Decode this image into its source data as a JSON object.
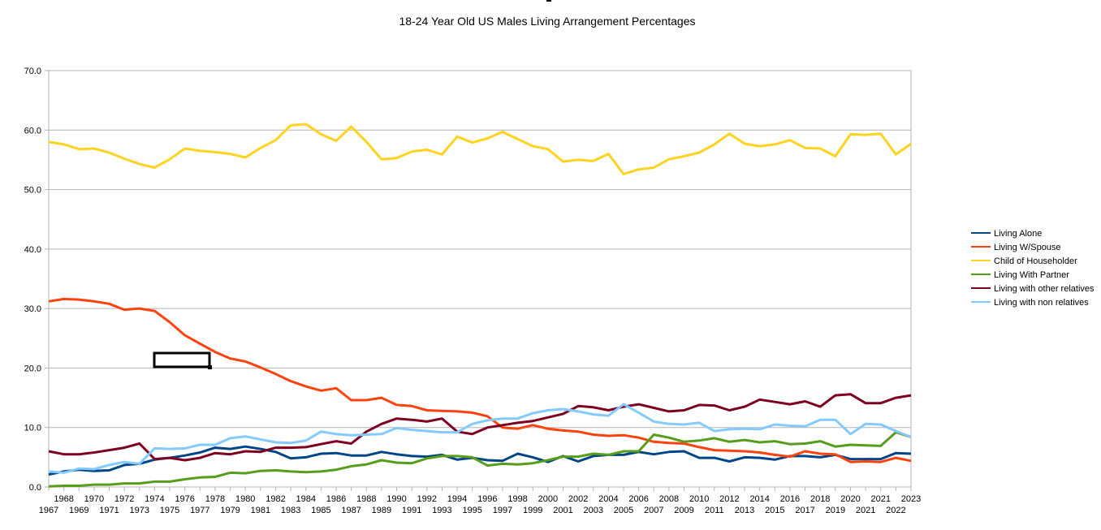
{
  "chart_data": {
    "type": "line",
    "title": "18-24 Year Old US Males Living Arrangement Percentages",
    "xlabel": "",
    "ylabel": "",
    "ylim": [
      0,
      70
    ],
    "yticks": [
      "0.0",
      "10.0",
      "20.0",
      "30.0",
      "40.0",
      "50.0",
      "60.0",
      "70.0"
    ],
    "grid": true,
    "legend_position": "right",
    "categories": [
      "1967",
      "1968",
      "1969",
      "1970",
      "1971",
      "1972",
      "1973",
      "1974",
      "1975",
      "1976",
      "1977",
      "1978",
      "1979",
      "1980",
      "1981",
      "1982",
      "1983",
      "1984",
      "1985",
      "1986",
      "1987",
      "1988",
      "1989",
      "1990",
      "1991",
      "1992",
      "1993",
      "1994",
      "1995",
      "1996",
      "1997",
      "1998",
      "1999",
      "2000",
      "2001",
      "2002",
      "2003",
      "2004",
      "2005",
      "2006",
      "2007",
      "2008",
      "2009",
      "2010",
      "2011",
      "2012",
      "2013",
      "2014",
      "2015",
      "2016",
      "2017",
      "2018",
      "2019",
      "2020",
      "2021",
      "2021",
      "2022",
      "2023"
    ],
    "series": [
      {
        "name": "Living Alone",
        "color": "#004586",
        "values": [
          2.1,
          2.6,
          2.9,
          2.7,
          2.8,
          3.7,
          3.9,
          4.6,
          4.9,
          5.3,
          5.8,
          6.6,
          6.4,
          6.8,
          6.4,
          5.9,
          4.8,
          5.0,
          5.6,
          5.7,
          5.3,
          5.3,
          5.9,
          5.5,
          5.2,
          5.1,
          5.4,
          4.6,
          4.9,
          4.5,
          4.4,
          5.6,
          5.0,
          4.2,
          5.2,
          4.3,
          5.2,
          5.4,
          5.4,
          5.9,
          5.5,
          5.9,
          6.0,
          4.9,
          4.9,
          4.3,
          5.0,
          4.9,
          4.6,
          5.2,
          5.2,
          5.0,
          5.4,
          4.7,
          4.7,
          4.7,
          5.7,
          5.6
        ]
      },
      {
        "name": "Living W/Spouse",
        "color": "#ff420e",
        "values": [
          31.2,
          31.6,
          31.5,
          31.2,
          30.8,
          29.8,
          30.0,
          29.6,
          27.7,
          25.5,
          24.1,
          22.7,
          21.6,
          21.1,
          20.1,
          19.0,
          17.8,
          16.9,
          16.2,
          16.6,
          14.6,
          14.6,
          15.0,
          13.8,
          13.6,
          12.9,
          12.8,
          12.7,
          12.5,
          11.9,
          10.0,
          9.8,
          10.4,
          9.8,
          9.5,
          9.3,
          8.8,
          8.6,
          8.7,
          8.3,
          7.6,
          7.4,
          7.3,
          6.7,
          6.2,
          6.1,
          6.0,
          5.8,
          5.4,
          5.1,
          6.0,
          5.6,
          5.5,
          4.2,
          4.3,
          4.2,
          4.9,
          4.4
        ]
      },
      {
        "name": "Child of Householder",
        "color": "#ffd320",
        "values": [
          58.0,
          57.6,
          56.8,
          56.9,
          56.2,
          55.2,
          54.3,
          53.7,
          55.1,
          56.9,
          56.5,
          56.3,
          56.0,
          55.4,
          57.0,
          58.3,
          60.8,
          61.0,
          59.3,
          58.2,
          60.6,
          58.0,
          55.1,
          55.3,
          56.4,
          56.7,
          55.9,
          58.9,
          57.9,
          58.6,
          59.7,
          58.5,
          57.3,
          56.8,
          54.7,
          55.0,
          54.8,
          56.0,
          52.6,
          53.4,
          53.7,
          55.1,
          55.6,
          56.2,
          57.6,
          59.4,
          57.7,
          57.3,
          57.6,
          58.3,
          57.0,
          56.9,
          55.6,
          59.3,
          59.2,
          59.4,
          55.9,
          57.7
        ]
      },
      {
        "name": "Living With Partner",
        "color": "#579d1c",
        "values": [
          0.1,
          0.2,
          0.2,
          0.4,
          0.4,
          0.6,
          0.6,
          0.9,
          0.9,
          1.3,
          1.6,
          1.7,
          2.4,
          2.3,
          2.7,
          2.8,
          2.6,
          2.5,
          2.6,
          2.9,
          3.5,
          3.8,
          4.5,
          4.1,
          4.0,
          4.8,
          5.2,
          5.2,
          5.0,
          3.6,
          3.9,
          3.8,
          4.0,
          4.5,
          5.1,
          5.1,
          5.6,
          5.4,
          6.0,
          6.0,
          8.8,
          8.3,
          7.6,
          7.8,
          8.2,
          7.6,
          7.9,
          7.5,
          7.7,
          7.2,
          7.3,
          7.7,
          6.8,
          7.1,
          7.0,
          6.9,
          9.2,
          8.4
        ]
      },
      {
        "name": "Living with other relatives",
        "color": "#7e0021",
        "values": [
          6.0,
          5.5,
          5.5,
          5.8,
          6.2,
          6.6,
          7.3,
          4.7,
          4.9,
          4.5,
          4.9,
          5.7,
          5.5,
          6.0,
          5.9,
          6.6,
          6.6,
          6.7,
          7.2,
          7.7,
          7.3,
          9.3,
          10.6,
          11.5,
          11.3,
          11.0,
          11.5,
          9.3,
          8.9,
          10.0,
          10.4,
          10.8,
          11.1,
          11.7,
          12.3,
          13.6,
          13.4,
          12.9,
          13.5,
          13.9,
          13.3,
          12.7,
          12.9,
          13.8,
          13.7,
          12.9,
          13.5,
          14.7,
          14.3,
          13.9,
          14.4,
          13.5,
          15.4,
          15.6,
          14.1,
          14.1,
          15.0,
          15.4
        ]
      },
      {
        "name": "Living with non relatives",
        "color": "#83caff",
        "values": [
          2.6,
          2.4,
          3.1,
          3.0,
          3.7,
          4.2,
          3.9,
          6.5,
          6.4,
          6.5,
          7.1,
          7.1,
          8.2,
          8.5,
          8.0,
          7.5,
          7.4,
          7.8,
          9.3,
          8.9,
          8.7,
          8.8,
          8.9,
          9.9,
          9.6,
          9.4,
          9.2,
          9.2,
          10.6,
          11.2,
          11.5,
          11.5,
          12.4,
          12.9,
          13.1,
          12.7,
          12.2,
          12.0,
          13.9,
          12.5,
          11.0,
          10.6,
          10.5,
          10.8,
          9.4,
          9.7,
          9.8,
          9.7,
          10.5,
          10.3,
          10.2,
          11.3,
          11.3,
          8.9,
          10.6,
          10.5,
          9.4,
          8.4
        ]
      }
    ]
  }
}
